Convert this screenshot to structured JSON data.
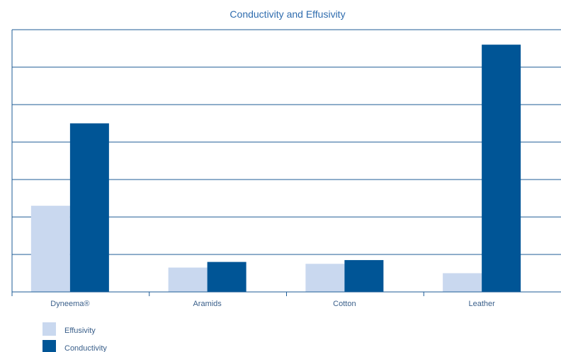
{
  "chart_data": {
    "type": "bar",
    "title": "Conductivity and Effusivity",
    "categories": [
      "Dyneema®",
      "Aramids",
      "Cotton",
      "Leather"
    ],
    "series": [
      {
        "name": "Effusivity",
        "values": [
          2.3,
          0.65,
          0.75,
          0.5
        ]
      },
      {
        "name": "Conductivity",
        "values": [
          4.5,
          0.8,
          0.85,
          6.6
        ]
      }
    ],
    "ylim": [
      0,
      7
    ],
    "yticks": [
      0,
      1,
      2,
      3,
      4,
      5,
      6,
      7
    ],
    "grid": true,
    "legend_position": "bottom-left"
  },
  "colors": {
    "effusivity": "#c9d8ef",
    "conductivity": "#005596",
    "axis": "#1d5b96",
    "title": "#2f6cae",
    "text": "#3a5f8a"
  }
}
